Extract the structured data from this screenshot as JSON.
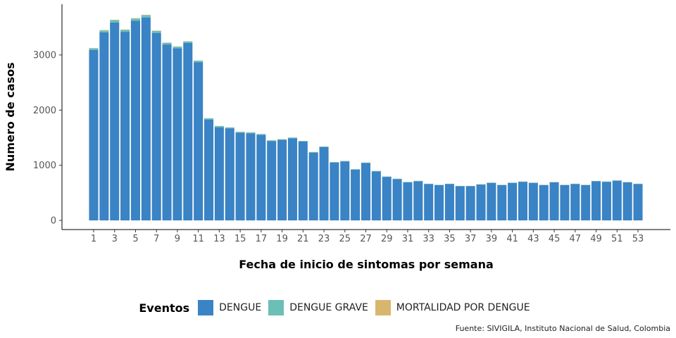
{
  "chart_data": {
    "type": "bar",
    "stacked": true,
    "xlabel": "Fecha de inicio de sintomas por semana",
    "ylabel": "Numero de casos",
    "ylim": [
      0,
      3900
    ],
    "yticks": [
      0,
      1000,
      2000,
      3000
    ],
    "x": [
      1,
      2,
      3,
      4,
      5,
      6,
      7,
      8,
      9,
      10,
      11,
      12,
      13,
      14,
      15,
      16,
      17,
      18,
      19,
      20,
      21,
      22,
      23,
      24,
      25,
      26,
      27,
      28,
      29,
      30,
      31,
      32,
      33,
      34,
      35,
      36,
      37,
      38,
      39,
      40,
      41,
      42,
      43,
      44,
      45,
      46,
      47,
      48,
      49,
      50,
      51,
      52,
      53
    ],
    "xticks": [
      1,
      3,
      5,
      7,
      9,
      11,
      13,
      15,
      17,
      19,
      21,
      23,
      25,
      27,
      29,
      31,
      33,
      35,
      37,
      39,
      41,
      43,
      45,
      47,
      49,
      51,
      53
    ],
    "series": [
      {
        "name": "DENGUE",
        "color": "#3a83c5",
        "values": [
          3090,
          3410,
          3590,
          3420,
          3620,
          3680,
          3400,
          3190,
          3120,
          3220,
          2870,
          1830,
          1690,
          1670,
          1590,
          1580,
          1550,
          1440,
          1460,
          1490,
          1430,
          1230,
          1330,
          1050,
          1070,
          920,
          1040,
          890,
          790,
          750,
          690,
          710,
          660,
          640,
          660,
          620,
          620,
          650,
          680,
          640,
          680,
          700,
          680,
          640,
          690,
          640,
          660,
          640,
          710,
          700,
          720,
          690,
          660
        ]
      },
      {
        "name": "DENGUE GRAVE",
        "color": "#6bbfb5",
        "values": [
          30,
          35,
          40,
          35,
          40,
          40,
          35,
          30,
          30,
          25,
          25,
          20,
          20,
          15,
          15,
          15,
          15,
          12,
          12,
          12,
          10,
          10,
          10,
          8,
          8,
          8,
          8,
          7,
          6,
          6,
          6,
          6,
          5,
          5,
          5,
          5,
          5,
          5,
          5,
          5,
          5,
          5,
          5,
          5,
          5,
          5,
          5,
          5,
          5,
          5,
          5,
          5,
          5
        ]
      },
      {
        "name": "MORTALIDAD POR DENGUE",
        "color": "#d9b66e",
        "values": [
          5,
          6,
          8,
          6,
          7,
          8,
          6,
          5,
          5,
          4,
          4,
          3,
          3,
          2,
          2,
          2,
          2,
          1,
          1,
          1,
          1,
          1,
          1,
          1,
          1,
          1,
          1,
          1,
          1,
          1,
          1,
          1,
          1,
          1,
          1,
          1,
          1,
          1,
          1,
          1,
          1,
          1,
          1,
          1,
          1,
          1,
          1,
          1,
          1,
          1,
          1,
          1,
          1
        ]
      }
    ],
    "legend": {
      "title": "Eventos",
      "position": "bottom"
    },
    "grid": false
  },
  "source": "Fuente: SIVIGILA, Instituto Nacional de Salud, Colombia"
}
